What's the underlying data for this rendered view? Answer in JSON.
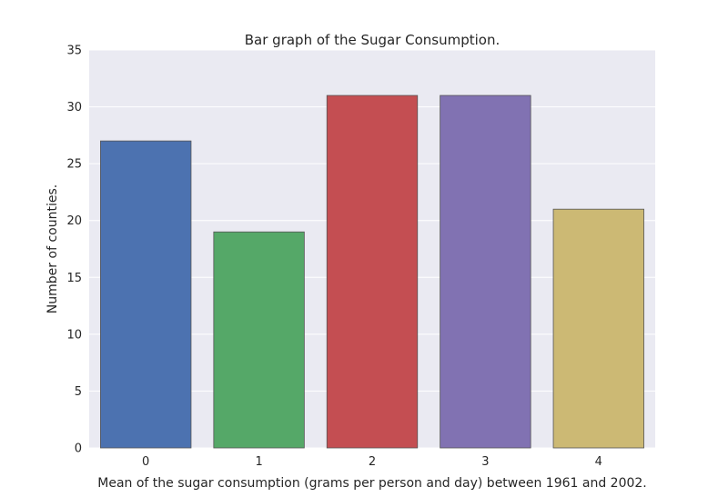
{
  "chart_data": {
    "type": "bar",
    "title": "Bar graph of the Sugar Consumption.",
    "xlabel": "Mean of the sugar consumption (grams per person and day) between 1961 and 2002.",
    "ylabel": "Number of counties.",
    "categories": [
      "0",
      "1",
      "2",
      "3",
      "4"
    ],
    "values": [
      27,
      19,
      31,
      31,
      21
    ],
    "ylim": [
      0,
      35
    ],
    "yticks": [
      0,
      5,
      10,
      15,
      20,
      25,
      30,
      35
    ],
    "ytick_labels": [
      "0",
      "5",
      "10",
      "15",
      "20",
      "25",
      "30",
      "35"
    ],
    "grid": true,
    "legend": "none",
    "colors": [
      "#4c72b0",
      "#55a868",
      "#c44e52",
      "#8172b2",
      "#ccb974"
    ],
    "background": "#eaeaf2"
  }
}
